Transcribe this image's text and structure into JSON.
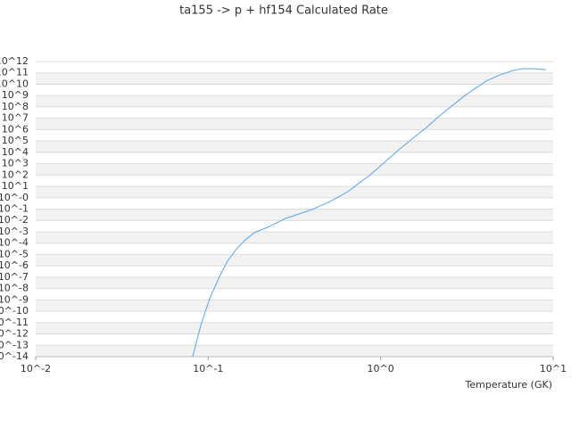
{
  "chart_data": {
    "type": "line",
    "title": "ta155 -> p + hf154 Calculated Rate",
    "x_label": "Temperature (GK)",
    "log_x": true,
    "log_y": true,
    "grid": true,
    "xlim": [
      0.01,
      10
    ],
    "ylim": [
      1e-14,
      1000000000000.0
    ],
    "xticks": [
      {
        "value": 0.01,
        "label": "10^-2"
      },
      {
        "value": 0.1,
        "label": "10^-1"
      },
      {
        "value": 1,
        "label": "10^0"
      },
      {
        "value": 10,
        "label": "10^1"
      }
    ],
    "yticks": [
      {
        "value": 1e-14,
        "label": "10^-14"
      },
      {
        "value": 1e-13,
        "label": "10^-13"
      },
      {
        "value": 1e-12,
        "label": "10^-12"
      },
      {
        "value": 1e-11,
        "label": "10^-11"
      },
      {
        "value": 1e-10,
        "label": "10^-10"
      },
      {
        "value": 1e-09,
        "label": "10^-9"
      },
      {
        "value": 1e-08,
        "label": "10^-8"
      },
      {
        "value": 1e-07,
        "label": "10^-7"
      },
      {
        "value": 1e-06,
        "label": "10^-6"
      },
      {
        "value": 1e-05,
        "label": "10^-5"
      },
      {
        "value": 0.0001,
        "label": "10^-4"
      },
      {
        "value": 0.001,
        "label": "10^-3"
      },
      {
        "value": 0.01,
        "label": "10^-2"
      },
      {
        "value": 0.1,
        "label": "10^-1"
      },
      {
        "value": 1,
        "label": "10^-0"
      },
      {
        "value": 10,
        "label": "10^1"
      },
      {
        "value": 100,
        "label": "10^2"
      },
      {
        "value": 1000,
        "label": "10^3"
      },
      {
        "value": 10000.0,
        "label": "10^4"
      },
      {
        "value": 100000.0,
        "label": "10^5"
      },
      {
        "value": 1000000.0,
        "label": "10^6"
      },
      {
        "value": 10000000.0,
        "label": "10^7"
      },
      {
        "value": 100000000.0,
        "label": "10^8"
      },
      {
        "value": 1000000000.0,
        "label": "10^9"
      },
      {
        "value": 10000000000.0,
        "label": "10^10"
      },
      {
        "value": 100000000000.0,
        "label": "10^11"
      },
      {
        "value": 1000000000000.0,
        "label": "10^12"
      }
    ],
    "series": [
      {
        "color": "#5aa5e8",
        "x": [
          0.0813,
          0.0906,
          0.102,
          0.115,
          0.129,
          0.145,
          0.164,
          0.185,
          0.221,
          0.281,
          0.401,
          0.509,
          0.646,
          0.728,
          0.871,
          1.04,
          1.24,
          1.49,
          1.84,
          2.13,
          2.54,
          3.04,
          3.42,
          4.09,
          4.9,
          5.85,
          6.59,
          7.88,
          9.1
        ],
        "values": [
          1e-14,
          5.6e-12,
          1.3e-09,
          8e-08,
          2.5e-06,
          2.7e-05,
          0.00019,
          0.00083,
          0.0025,
          0.015,
          0.091,
          0.47,
          3.4,
          14,
          105,
          1100,
          12000.0,
          120000.0,
          1500000.0,
          11000000.0,
          98000000.0,
          870000000.0,
          3100000000.0,
          19000000000.0,
          66000000000.0,
          160000000000.0,
          230000000000.0,
          230000000000.0,
          190000000000.0
        ]
      }
    ]
  }
}
